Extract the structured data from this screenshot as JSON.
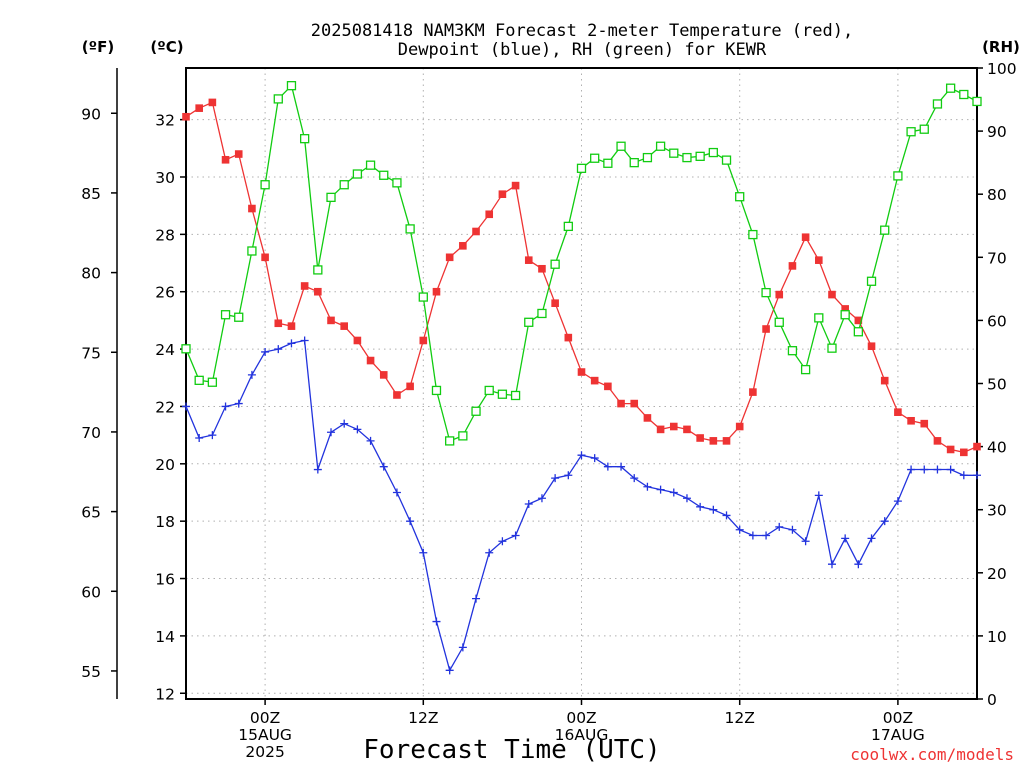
{
  "chart_data": {
    "type": "line",
    "title_lines": [
      "2025081418 NAM3KM Forecast 2-meter Temperature (red),",
      "Dewpoint (blue), RH (green) for KEWR"
    ],
    "xlabel": "Forecast Time (UTC)",
    "credit": "coolwx.com/models",
    "units": {
      "fahrenheit": "(ºF)",
      "celsius": "(ºC)",
      "rh": "(RH)"
    },
    "x_unit": "hours from 2025-08-14 18Z",
    "xlim": [
      0,
      60
    ],
    "x_ticks": [
      {
        "hour": 6,
        "lines": [
          "00Z",
          "15AUG",
          "2025"
        ]
      },
      {
        "hour": 18,
        "lines": [
          "12Z"
        ]
      },
      {
        "hour": 30,
        "lines": [
          "00Z",
          "16AUG"
        ]
      },
      {
        "hour": 42,
        "lines": [
          "12Z"
        ]
      },
      {
        "hour": 54,
        "lines": [
          "00Z",
          "17AUG"
        ]
      }
    ],
    "celsius_axis": {
      "range": [
        11.8,
        33.8
      ],
      "ticks": [
        12,
        14,
        16,
        18,
        20,
        22,
        24,
        26,
        28,
        30,
        32
      ]
    },
    "fahrenheit_axis": {
      "ticks": [
        55,
        60,
        65,
        70,
        75,
        80,
        85,
        90
      ]
    },
    "rh_axis": {
      "range": [
        0,
        100
      ],
      "ticks": [
        0,
        10,
        20,
        30,
        40,
        50,
        60,
        70,
        80,
        90,
        100
      ]
    },
    "grid": true,
    "series": [
      {
        "name": "2-meter Temperature",
        "color": "#ee3333",
        "marker": "filled-square",
        "axis": "celsius",
        "values": [
          32.1,
          32.4,
          32.6,
          30.6,
          30.8,
          28.9,
          27.2,
          24.9,
          24.8,
          26.2,
          26.0,
          25.0,
          24.8,
          24.3,
          23.6,
          23.1,
          22.4,
          22.7,
          24.3,
          26.0,
          27.2,
          27.6,
          28.1,
          28.7,
          29.4,
          29.7,
          27.1,
          26.8,
          25.6,
          24.4,
          23.2,
          22.9,
          22.7,
          22.1,
          22.1,
          21.6,
          21.2,
          21.3,
          21.2,
          20.9,
          20.8,
          20.8,
          21.3,
          22.5,
          24.7,
          25.9,
          26.9,
          27.9,
          27.1,
          25.9,
          25.4,
          25.0,
          24.1,
          22.9,
          21.8,
          21.5,
          21.4,
          20.8,
          20.5,
          20.4,
          20.6
        ]
      },
      {
        "name": "Dewpoint",
        "color": "#2233dd",
        "marker": "plus",
        "axis": "celsius",
        "values": [
          22.0,
          20.9,
          21.0,
          22.0,
          22.1,
          23.1,
          23.9,
          24.0,
          24.2,
          24.3,
          19.8,
          21.1,
          21.4,
          21.2,
          20.8,
          19.9,
          19.0,
          18.0,
          16.9,
          14.5,
          12.8,
          13.6,
          15.3,
          16.9,
          17.3,
          17.5,
          18.6,
          18.8,
          19.5,
          19.6,
          20.3,
          20.2,
          19.9,
          19.9,
          19.5,
          19.2,
          19.1,
          19.0,
          18.8,
          18.5,
          18.4,
          18.2,
          17.7,
          17.5,
          17.5,
          17.8,
          17.7,
          17.3,
          18.9,
          16.5,
          17.4,
          16.5,
          17.4,
          18.0,
          18.7,
          19.8,
          19.8,
          19.8,
          19.8,
          19.6,
          19.6
        ]
      },
      {
        "name": "RH",
        "color": "#11cc11",
        "marker": "open-square",
        "axis": "rh",
        "values": [
          55.5,
          50.5,
          50.2,
          60.9,
          60.5,
          71.0,
          81.5,
          95.1,
          97.2,
          88.8,
          68.0,
          79.5,
          81.5,
          83.2,
          84.6,
          83.0,
          81.8,
          74.5,
          63.7,
          48.9,
          40.9,
          41.7,
          45.6,
          48.9,
          48.3,
          48.1,
          59.7,
          61.1,
          68.9,
          74.9,
          84.1,
          85.7,
          84.9,
          87.6,
          85.0,
          85.8,
          87.6,
          86.5,
          85.8,
          86.0,
          86.6,
          85.4,
          79.6,
          73.6,
          64.4,
          59.7,
          55.2,
          52.2,
          60.4,
          55.6,
          60.9,
          58.2,
          66.2,
          74.3,
          82.9,
          89.9,
          90.3,
          94.3,
          96.8,
          95.8,
          94.7
        ]
      }
    ]
  }
}
